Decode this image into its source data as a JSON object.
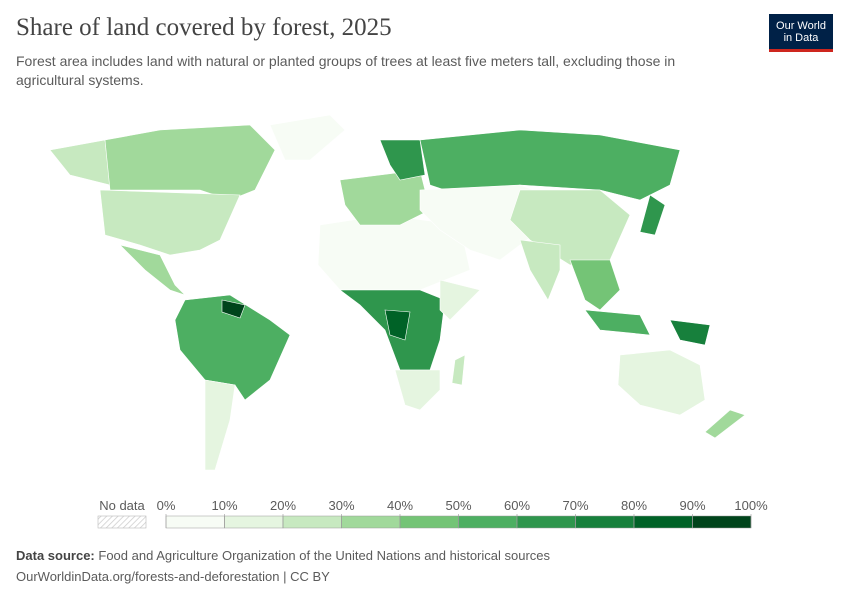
{
  "header": {
    "title": "Share of land covered by forest, 2025",
    "subtitle": "Forest area includes land with natural or planted groups of trees at least five meters tall, excluding those in agricultural systems.",
    "logo": [
      "Our World",
      "in Data"
    ]
  },
  "legend": {
    "no_data_label": "No data",
    "ticks": [
      "0%",
      "10%",
      "20%",
      "30%",
      "40%",
      "50%",
      "60%",
      "70%",
      "80%",
      "90%",
      "100%"
    ],
    "colors": [
      "#f7fcf5",
      "#e5f5e0",
      "#c7e9c0",
      "#a1d99b",
      "#74c476",
      "#4daf62",
      "#2f964d",
      "#17803c",
      "#006227",
      "#00441b"
    ]
  },
  "footer": {
    "source_label": "Data source:",
    "source": "Food and Agriculture Organization of the United Nations and historical sources",
    "url_license": "OurWorldinData.org/forests-and-deforestation | CC BY"
  }
}
